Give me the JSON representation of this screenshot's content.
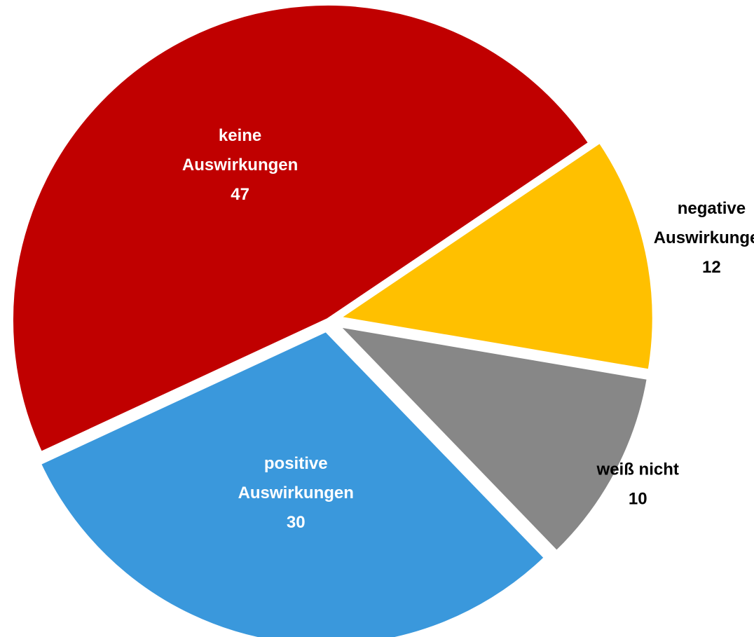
{
  "chart_data": {
    "type": "pie",
    "title": "",
    "start_angle_deg": 56,
    "direction": "clockwise",
    "slices": [
      {
        "label_lines": [
          "negative",
          "Auswirkungen"
        ],
        "value": 12,
        "value_text": "12",
        "color": "#FFC000",
        "label_color": "#000000",
        "label_position": "outside"
      },
      {
        "label_lines": [
          "weiß nicht"
        ],
        "value": 10,
        "value_text": "10",
        "color": "#878787",
        "label_color": "#000000",
        "label_position": "outside"
      },
      {
        "label_lines": [
          "positive",
          "Auswirkungen"
        ],
        "value": 30,
        "value_text": "30",
        "color": "#3A98DC",
        "label_color": "#ffffff",
        "label_position": "inside"
      },
      {
        "label_lines": [
          "keine",
          "Auswirkungen"
        ],
        "value": 47,
        "value_text": "47",
        "color": "#C00000",
        "label_color": "#ffffff",
        "label_position": "inside"
      }
    ]
  }
}
